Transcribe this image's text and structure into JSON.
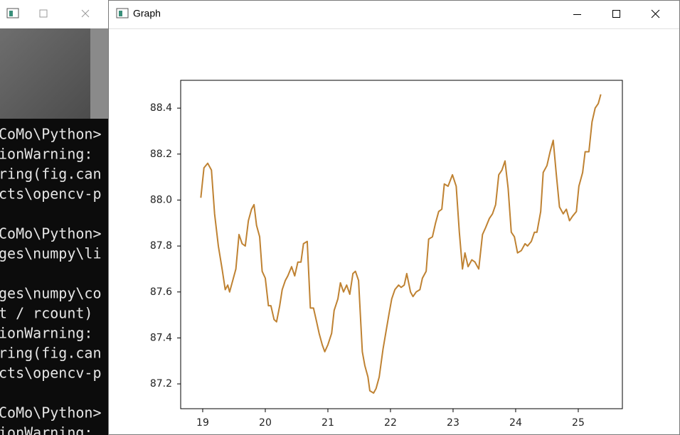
{
  "graph_window": {
    "title": "Graph"
  },
  "terminal": {
    "lines": [
      "CoMo\\Python>",
      "ionWarning:",
      "ring(fig.can",
      "cts\\opencv-p",
      "CoMo\\Python>",
      "ges\\numpy\\li",
      "ges\\numpy\\co",
      "t / rcount)",
      "ionWarning:",
      "ring(fig.can",
      "cts\\opencv-p",
      "CoMo\\Python>",
      "ionWarning:"
    ]
  },
  "chart_data": {
    "type": "line",
    "x": [
      18.97,
      19.02,
      19.08,
      19.14,
      19.19,
      19.25,
      19.31,
      19.36,
      19.4,
      19.43,
      19.48,
      19.53,
      19.58,
      19.63,
      19.68,
      19.73,
      19.78,
      19.82,
      19.86,
      19.91,
      19.95,
      20.0,
      20.05,
      20.09,
      20.14,
      20.18,
      20.23,
      20.27,
      20.32,
      20.36,
      20.42,
      20.47,
      20.52,
      20.57,
      20.61,
      20.67,
      20.72,
      20.77,
      20.82,
      20.86,
      20.91,
      20.95,
      21.0,
      21.06,
      21.1,
      21.16,
      21.2,
      21.25,
      21.3,
      21.35,
      21.4,
      21.44,
      21.49,
      21.55,
      21.59,
      21.64,
      21.67,
      21.73,
      21.77,
      21.82,
      21.88,
      21.93,
      21.98,
      22.02,
      22.07,
      22.13,
      22.17,
      22.22,
      22.26,
      22.32,
      22.36,
      22.41,
      22.47,
      22.51,
      22.57,
      22.61,
      22.67,
      22.72,
      22.77,
      22.82,
      22.86,
      22.92,
      22.99,
      23.05,
      23.1,
      23.15,
      23.19,
      23.24,
      23.3,
      23.35,
      23.41,
      23.47,
      23.52,
      23.58,
      23.63,
      23.68,
      23.73,
      23.78,
      23.83,
      23.88,
      23.93,
      23.98,
      24.03,
      24.09,
      24.15,
      24.19,
      24.25,
      24.3,
      24.34,
      24.4,
      24.44,
      24.5,
      24.55,
      24.6,
      24.65,
      24.7,
      24.76,
      24.81,
      24.86,
      24.91,
      24.97,
      25.01,
      25.07,
      25.11,
      25.17,
      25.22,
      25.27,
      25.32,
      25.36
    ],
    "series": [
      {
        "color": "#bf8232",
        "values": [
          88.01,
          88.14,
          88.16,
          88.13,
          87.94,
          87.8,
          87.7,
          87.61,
          87.63,
          87.6,
          87.65,
          87.7,
          87.85,
          87.81,
          87.8,
          87.91,
          87.96,
          87.98,
          87.89,
          87.84,
          87.69,
          87.66,
          87.54,
          87.54,
          87.48,
          87.47,
          87.54,
          87.61,
          87.65,
          87.67,
          87.71,
          87.67,
          87.73,
          87.73,
          87.81,
          87.82,
          87.53,
          87.53,
          87.47,
          87.42,
          87.37,
          87.34,
          87.37,
          87.42,
          87.52,
          87.57,
          87.64,
          87.6,
          87.63,
          87.59,
          87.68,
          87.69,
          87.65,
          87.34,
          87.28,
          87.23,
          87.17,
          87.16,
          87.18,
          87.23,
          87.35,
          87.43,
          87.51,
          87.57,
          87.61,
          87.63,
          87.62,
          87.63,
          87.68,
          87.6,
          87.58,
          87.6,
          87.61,
          87.66,
          87.69,
          87.83,
          87.84,
          87.9,
          87.95,
          87.96,
          88.07,
          88.06,
          88.11,
          88.06,
          87.86,
          87.7,
          87.77,
          87.71,
          87.74,
          87.73,
          87.7,
          87.85,
          87.88,
          87.92,
          87.94,
          87.98,
          88.11,
          88.13,
          88.17,
          88.05,
          87.86,
          87.84,
          87.77,
          87.78,
          87.81,
          87.8,
          87.82,
          87.86,
          87.86,
          87.95,
          88.12,
          88.15,
          88.21,
          88.26,
          88.11,
          87.97,
          87.94,
          87.96,
          87.91,
          87.93,
          87.95,
          88.06,
          88.12,
          88.21,
          88.21,
          88.34,
          88.4,
          88.42,
          88.46
        ]
      }
    ],
    "xlim": [
      18.648,
      25.705
    ],
    "ylim": [
      87.092,
      88.521
    ],
    "xticks": [
      19,
      20,
      21,
      22,
      23,
      24,
      25
    ],
    "yticks": [
      87.2,
      87.4,
      87.6,
      87.8,
      {
        "value": 88,
        "label": "88.0"
      },
      88.2,
      88.4
    ],
    "grid": false
  }
}
